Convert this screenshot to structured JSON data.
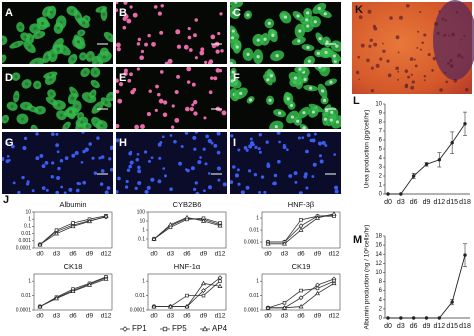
{
  "image_panels": [
    {
      "label": "A"
    },
    {
      "label": "B"
    },
    {
      "label": "C"
    },
    {
      "label": "D"
    },
    {
      "label": "E"
    },
    {
      "label": "F"
    },
    {
      "label": "G"
    },
    {
      "label": "H"
    },
    {
      "label": "I"
    }
  ],
  "photo_panel": {
    "label": "K"
  },
  "chart_panel_labels": {
    "J": "J",
    "L": "L",
    "M": "M"
  },
  "chart_data": [
    {
      "type": "line",
      "group": "J",
      "title": "Albumin",
      "log_y": true,
      "categories": [
        "d0",
        "d3",
        "d6",
        "d9",
        "d12"
      ],
      "ylim": [
        0.0001,
        10
      ],
      "yticks": [
        10,
        1,
        0.1,
        0.01,
        0.001,
        0.0001
      ],
      "series": [
        {
          "name": "FP1",
          "marker": "diamond",
          "color": "#333333",
          "values": [
            0.0003,
            0.02,
            0.15,
            0.6,
            2
          ]
        },
        {
          "name": "FP5",
          "marker": "square",
          "color": "#333333",
          "values": [
            0.0003,
            0.03,
            0.3,
            1,
            3
          ]
        },
        {
          "name": "AP4",
          "marker": "triangle",
          "color": "#333333",
          "values": [
            0.0003,
            0.01,
            0.1,
            0.5,
            2.5
          ]
        }
      ]
    },
    {
      "type": "line",
      "group": "J",
      "title": "CYB2B6",
      "log_y": true,
      "categories": [
        "d0",
        "d3",
        "d6",
        "d9",
        "d12"
      ],
      "ylim": [
        0.01,
        100
      ],
      "yticks": [
        100,
        10,
        1,
        0.1
      ],
      "series": [
        {
          "marker": "diamond",
          "color": "#333333",
          "values": [
            0.1,
            3,
            20,
            15,
            4
          ]
        },
        {
          "marker": "square",
          "color": "#333333",
          "values": [
            0.1,
            2,
            15,
            20,
            6
          ]
        },
        {
          "marker": "triangle",
          "color": "#333333",
          "values": [
            0.1,
            4,
            25,
            10,
            3
          ]
        }
      ]
    },
    {
      "type": "line",
      "group": "J",
      "title": "HNF-3β",
      "log_y": true,
      "categories": [
        "d0",
        "d3",
        "d6",
        "d9",
        "d12"
      ],
      "ylim": [
        1e-05,
        10
      ],
      "yticks": [
        1,
        0.01,
        0.0001
      ],
      "series": [
        {
          "marker": "diamond",
          "color": "#333333",
          "values": [
            0.0001,
            0.0001,
            0.05,
            2,
            3
          ]
        },
        {
          "marker": "square",
          "color": "#333333",
          "values": [
            0.0001,
            0.0001,
            0.5,
            2,
            2
          ]
        },
        {
          "marker": "triangle",
          "color": "#333333",
          "values": [
            5e-05,
            5e-05,
            0.01,
            1,
            5
          ]
        }
      ]
    },
    {
      "type": "line",
      "group": "J",
      "title": "CK18",
      "log_y": true,
      "categories": [
        "d0",
        "d3",
        "d6",
        "d9",
        "d12"
      ],
      "ylim": [
        0.0001,
        10
      ],
      "yticks": [
        1,
        0.01,
        0.0001
      ],
      "series": [
        {
          "marker": "diamond",
          "color": "#333333",
          "values": [
            0.0003,
            0.005,
            0.05,
            0.4,
            3
          ]
        },
        {
          "marker": "square",
          "color": "#333333",
          "values": [
            0.0003,
            0.006,
            0.08,
            0.5,
            4
          ]
        },
        {
          "marker": "triangle",
          "color": "#333333",
          "values": [
            0.0003,
            0.004,
            0.04,
            0.3,
            2
          ]
        }
      ]
    },
    {
      "type": "line",
      "group": "J",
      "title": "HNF-1α",
      "log_y": true,
      "categories": [
        "d0",
        "d3",
        "d6",
        "d9",
        "d12"
      ],
      "ylim": [
        0.0001,
        10
      ],
      "yticks": [
        1,
        0.01,
        0.0001
      ],
      "series": [
        {
          "marker": "diamond",
          "color": "#333333",
          "values": [
            0.0003,
            0.0003,
            0.0003,
            0.05,
            3
          ]
        },
        {
          "marker": "square",
          "color": "#333333",
          "values": [
            0.0003,
            0.0003,
            0.01,
            0.01,
            1
          ]
        },
        {
          "marker": "triangle",
          "color": "#333333",
          "values": [
            0.0003,
            0.0003,
            0.0003,
            0.5,
            0.2
          ]
        }
      ]
    },
    {
      "type": "line",
      "group": "J",
      "title": "CK19",
      "log_y": true,
      "categories": [
        "d0",
        "d3",
        "d6",
        "d9",
        "d12"
      ],
      "ylim": [
        0.0001,
        10
      ],
      "yticks": [
        1,
        0.01,
        0.0001
      ],
      "series": [
        {
          "marker": "diamond",
          "color": "#333333",
          "values": [
            0.0002,
            0.0002,
            0.005,
            0.3,
            2
          ]
        },
        {
          "marker": "square",
          "color": "#333333",
          "values": [
            0.0002,
            0.001,
            0.05,
            0.1,
            1
          ]
        },
        {
          "marker": "triangle",
          "color": "#333333",
          "values": [
            0.0002,
            0.0002,
            0.0003,
            0.02,
            0.5
          ]
        }
      ]
    },
    {
      "type": "errorline",
      "group": "L",
      "ylabel": "Urea production (pg/cell/hr)",
      "categories": [
        "d0",
        "d3",
        "d6",
        "d9",
        "d12",
        "d15",
        "d18"
      ],
      "ylim": [
        0,
        10
      ],
      "yticks": [
        0,
        1,
        2,
        3,
        4,
        5,
        6,
        7,
        8,
        9,
        10
      ],
      "color": "#222222",
      "values": [
        0,
        0,
        2,
        3.3,
        3.8,
        5.7,
        7.8
      ],
      "errors": [
        0,
        0,
        0.3,
        0.2,
        0.8,
        1.2,
        1.3
      ]
    },
    {
      "type": "errorline",
      "group": "M",
      "ylabel": "Albumin production (ng / 10⁶cells/hr)",
      "categories": [
        "d0",
        "d3",
        "d6",
        "d9",
        "d12",
        "d15",
        "d18"
      ],
      "ylim": [
        0,
        18
      ],
      "yticks": [
        0,
        2,
        4,
        6,
        8,
        10,
        12,
        14,
        16,
        18
      ],
      "color": "#222222",
      "values": [
        0,
        0,
        0,
        0,
        0,
        3.5,
        13.8
      ],
      "errors": [
        0,
        0,
        0,
        0,
        0,
        0.6,
        2.5
      ]
    }
  ]
}
